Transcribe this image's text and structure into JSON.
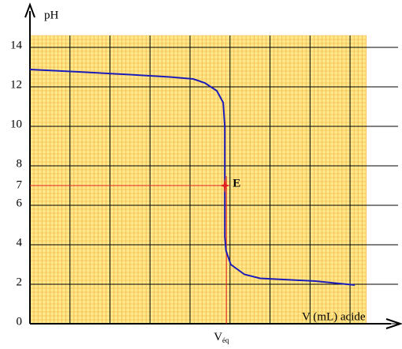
{
  "chart_data": {
    "type": "line",
    "y_axis_label": "pH",
    "x_axis_label": "V (mL) acide",
    "xlim": [
      0,
      9.2
    ],
    "ylim": [
      0,
      16
    ],
    "yticks": [
      0,
      2,
      4,
      6,
      8,
      10,
      12,
      14
    ],
    "grid": true,
    "series": [
      {
        "name": "pH",
        "color": "#1c1cb8",
        "x": [
          0,
          1.22,
          2.5,
          3.5,
          4.08,
          4.37,
          4.67,
          4.83,
          4.87,
          4.87,
          4.87,
          4.9,
          5.02,
          5.36,
          5.75,
          7.13,
          8.12
        ],
        "values": [
          12.88,
          12.76,
          12.62,
          12.5,
          12.4,
          12.2,
          11.8,
          11.2,
          10,
          7,
          4.4,
          3.7,
          3.0,
          2.5,
          2.3,
          2.16,
          1.96
        ]
      }
    ],
    "equivalence": {
      "label": "E",
      "x": 4.87,
      "y": 7,
      "color": "#e02020",
      "x_label": {
        "base": "V",
        "sub": "éq"
      }
    }
  }
}
